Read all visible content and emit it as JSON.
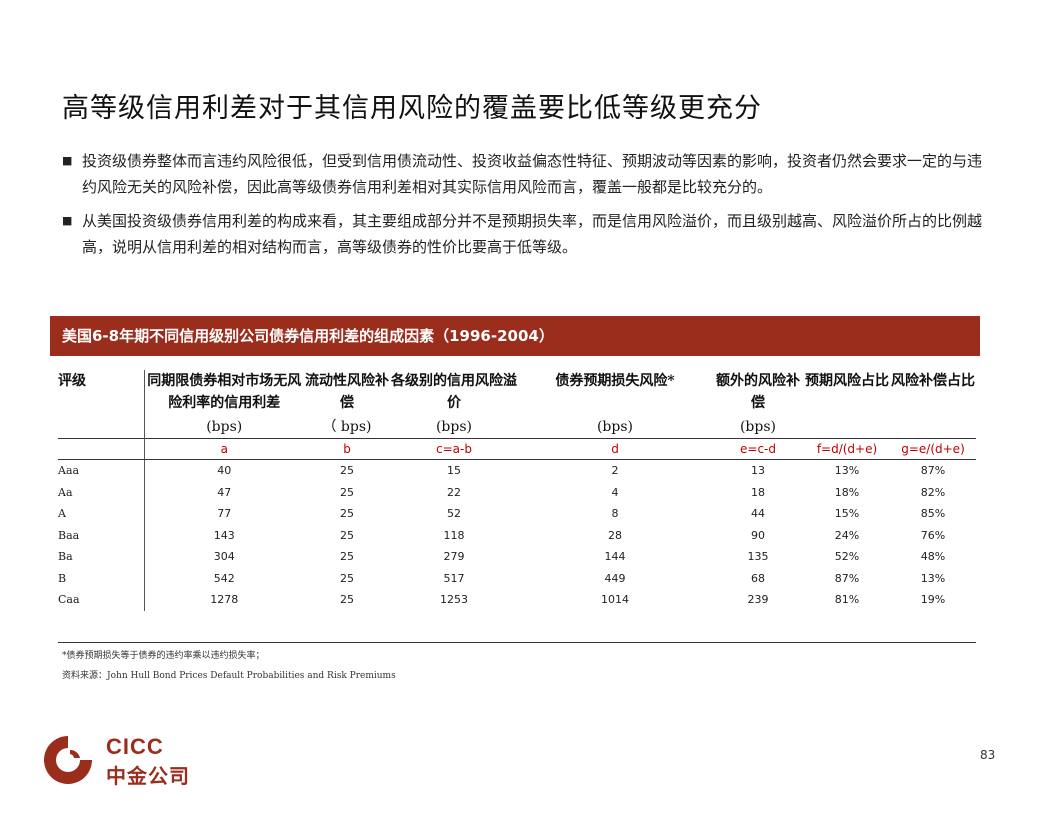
{
  "title": "高等级信用利差对于其信用风险的覆盖要比低等级更充分",
  "bullets": [
    {
      "marker": "■",
      "text": "投资级债券整体而言违约风险很低，但受到信用债流动性、投资收益偏态性特征、预期波动等因素的影响，投资者仍然会要求一定的与违约风险无关的风险补偿，因此高等级债券信用利差相对其实际信用风险而言，覆盖一般都是比较充分的。"
    },
    {
      "marker": "■",
      "text": "从美国投资级债券信用利差的构成来看，其主要组成部分并不是预期损失率，而是信用风险溢价，而且级别越高、风险溢价所占的比例越高，说明从信用利差的相对结构而言，高等级债券的性价比要高于低等级。"
    }
  ],
  "table_title": "美国6-8年期不同信用级别公司债券信用利差的组成因素（1996-2004）",
  "table": {
    "headers": [
      "评级",
      "同期限债券相对市场无风险利率的信用利差",
      "流动性风险补偿",
      "各级别的信用风险溢价",
      "债券预期损失风险*",
      "额外的风险补偿",
      "预期风险占比",
      "风险补偿占比"
    ],
    "units": [
      "",
      "(bps)",
      "（ bps)",
      "(bps)",
      "(bps)",
      "(bps)",
      "",
      ""
    ],
    "formulas": [
      "",
      "a",
      "b",
      "c=a-b",
      "d",
      "e=c-d",
      "f=d/(d+e)",
      "g=e/(d+e)"
    ],
    "rows": [
      [
        "Aaa",
        "40",
        "25",
        "15",
        "2",
        "13",
        "13%",
        "87%"
      ],
      [
        "Aa",
        "47",
        "25",
        "22",
        "4",
        "18",
        "18%",
        "82%"
      ],
      [
        "A",
        "77",
        "25",
        "52",
        "8",
        "44",
        "15%",
        "85%"
      ],
      [
        "Baa",
        "143",
        "25",
        "118",
        "28",
        "90",
        "24%",
        "76%"
      ],
      [
        "Ba",
        "304",
        "25",
        "279",
        "144",
        "135",
        "52%",
        "48%"
      ],
      [
        "B",
        "542",
        "25",
        "517",
        "449",
        "68",
        "87%",
        "13%"
      ],
      [
        "Caa",
        "1278",
        "25",
        "1253",
        "1014",
        "239",
        "81%",
        "19%"
      ]
    ]
  },
  "footnote": "*债券预期损失等于债券的违约率乘以违约损失率；",
  "source": "资料来源：John Hull  Bond Prices Default Probabilities and Risk Premiums",
  "logo": {
    "en": "CICC",
    "cn": "中金公司",
    "color": "#9b2d1d"
  },
  "page_number": "83"
}
